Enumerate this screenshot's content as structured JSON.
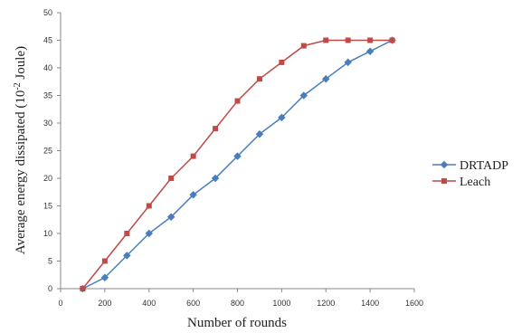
{
  "chart_data": {
    "type": "line",
    "xlabel": "Number of rounds",
    "ylabel_main": "Average energy dissipated (10",
    "ylabel_sup": "-2",
    "ylabel_tail": " Joule)",
    "xlim": [
      0,
      1600
    ],
    "ylim": [
      0,
      50
    ],
    "xticks": [
      "0",
      "200",
      "400",
      "600",
      "800",
      "1000",
      "1200",
      "1400",
      "1600"
    ],
    "yticks": [
      "0",
      "5",
      "10",
      "15",
      "20",
      "25",
      "30",
      "35",
      "40",
      "45",
      "50"
    ],
    "grid": false,
    "legend_position": "right",
    "x": [
      100,
      200,
      300,
      400,
      500,
      600,
      700,
      800,
      900,
      1000,
      1100,
      1200,
      1300,
      1400,
      1500
    ],
    "series": [
      {
        "name": "DRTADP",
        "color": "#4a7ebb",
        "marker": "diamond",
        "values": [
          0,
          2,
          6,
          10,
          13,
          17,
          20,
          24,
          28,
          31,
          35,
          38,
          41,
          43,
          45
        ]
      },
      {
        "name": "Leach",
        "color": "#be4b48",
        "marker": "square",
        "values": [
          0,
          5,
          10,
          15,
          20,
          24,
          29,
          34,
          38,
          41,
          44,
          45,
          45,
          45,
          45
        ]
      }
    ]
  }
}
